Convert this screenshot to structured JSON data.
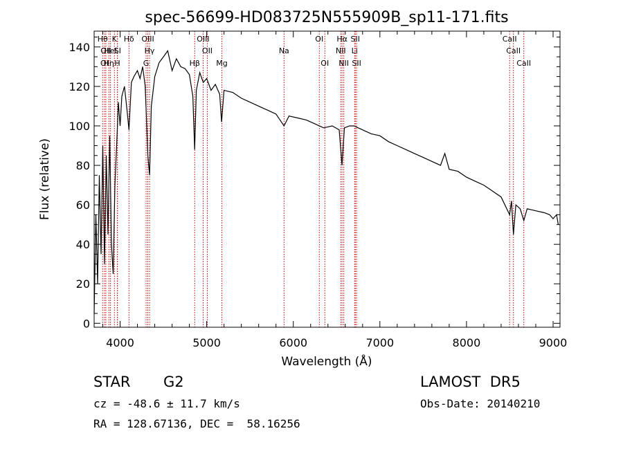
{
  "chart_data": {
    "type": "line",
    "title": "spec-56699-HD083725N555909B_sp11-171.fits",
    "xlabel": "Wavelength (Å)",
    "ylabel": "Flux (relative)",
    "xlim": [
      3700,
      9080
    ],
    "ylim": [
      -2,
      148
    ],
    "xticks": [
      4000,
      5000,
      6000,
      7000,
      8000,
      9000
    ],
    "yticks": [
      0,
      20,
      40,
      60,
      80,
      100,
      120,
      140
    ],
    "grid": false,
    "series": [
      {
        "color": "#000000",
        "points": [
          [
            3700,
            5
          ],
          [
            3720,
            55
          ],
          [
            3740,
            20
          ],
          [
            3760,
            75
          ],
          [
            3780,
            35
          ],
          [
            3800,
            90
          ],
          [
            3820,
            30
          ],
          [
            3840,
            85
          ],
          [
            3860,
            45
          ],
          [
            3880,
            95
          ],
          [
            3900,
            40
          ],
          [
            3920,
            25
          ],
          [
            3940,
            70
          ],
          [
            3960,
            90
          ],
          [
            3980,
            112
          ],
          [
            4000,
            100
          ],
          [
            4020,
            115
          ],
          [
            4050,
            120
          ],
          [
            4080,
            108
          ],
          [
            4102,
            98
          ],
          [
            4130,
            122
          ],
          [
            4160,
            125
          ],
          [
            4200,
            128
          ],
          [
            4230,
            124
          ],
          [
            4260,
            130
          ],
          [
            4290,
            120
          ],
          [
            4320,
            85
          ],
          [
            4340,
            75
          ],
          [
            4360,
            110
          ],
          [
            4400,
            125
          ],
          [
            4450,
            132
          ],
          [
            4500,
            135
          ],
          [
            4550,
            138
          ],
          [
            4600,
            128
          ],
          [
            4650,
            134
          ],
          [
            4700,
            130
          ],
          [
            4750,
            129
          ],
          [
            4800,
            126
          ],
          [
            4840,
            115
          ],
          [
            4861,
            88
          ],
          [
            4880,
            118
          ],
          [
            4920,
            127
          ],
          [
            4960,
            122
          ],
          [
            5000,
            124
          ],
          [
            5050,
            118
          ],
          [
            5100,
            121
          ],
          [
            5150,
            116
          ],
          [
            5172,
            102
          ],
          [
            5200,
            118
          ],
          [
            5300,
            117
          ],
          [
            5400,
            114
          ],
          [
            5500,
            112
          ],
          [
            5600,
            110
          ],
          [
            5700,
            108
          ],
          [
            5800,
            106
          ],
          [
            5893,
            100
          ],
          [
            5950,
            105
          ],
          [
            6050,
            104
          ],
          [
            6150,
            103
          ],
          [
            6250,
            101
          ],
          [
            6350,
            99
          ],
          [
            6450,
            100
          ],
          [
            6530,
            98
          ],
          [
            6563,
            80
          ],
          [
            6590,
            99
          ],
          [
            6650,
            100
          ],
          [
            6700,
            100
          ],
          [
            6800,
            98
          ],
          [
            6900,
            96
          ],
          [
            7000,
            95
          ],
          [
            7100,
            92
          ],
          [
            7200,
            90
          ],
          [
            7300,
            88
          ],
          [
            7400,
            86
          ],
          [
            7500,
            84
          ],
          [
            7600,
            82
          ],
          [
            7700,
            80
          ],
          [
            7750,
            86
          ],
          [
            7800,
            78
          ],
          [
            7900,
            77
          ],
          [
            8000,
            74
          ],
          [
            8100,
            72
          ],
          [
            8200,
            70
          ],
          [
            8300,
            67
          ],
          [
            8400,
            64
          ],
          [
            8498,
            55
          ],
          [
            8520,
            62
          ],
          [
            8542,
            45
          ],
          [
            8570,
            60
          ],
          [
            8620,
            58
          ],
          [
            8662,
            52
          ],
          [
            8700,
            58
          ],
          [
            8800,
            57
          ],
          [
            8900,
            56
          ],
          [
            8960,
            55
          ],
          [
            9000,
            53
          ],
          [
            9040,
            55
          ],
          [
            9060,
            50
          ]
        ]
      }
    ],
    "line_markers": [
      {
        "wave": 3798,
        "label": "Hθ",
        "row": 0
      },
      {
        "wave": 3835,
        "label": "OII",
        "row": 1
      },
      {
        "wave": 3820,
        "label": "OI",
        "row": 2
      },
      {
        "wave": 3889,
        "label": "HeI",
        "row": 1
      },
      {
        "wave": 3870,
        "label": "Hη",
        "row": 2
      },
      {
        "wave": 3934,
        "label": "K",
        "row": 0
      },
      {
        "wave": 3968,
        "label": "H",
        "row": 2
      },
      {
        "wave": 3970,
        "label": "SI",
        "row": 1
      },
      {
        "wave": 4102,
        "label": "Hδ",
        "row": 0
      },
      {
        "wave": 4320,
        "label": "OIII",
        "row": 0
      },
      {
        "wave": 4340,
        "label": "Hγ",
        "row": 1
      },
      {
        "wave": 4300,
        "label": "G",
        "row": 2
      },
      {
        "wave": 4861,
        "label": "Hβ",
        "row": 2
      },
      {
        "wave": 4959,
        "label": "OIII",
        "row": 0
      },
      {
        "wave": 5007,
        "label": "OII",
        "row": 1
      },
      {
        "wave": 5175,
        "label": "Mg",
        "row": 2
      },
      {
        "wave": 5893,
        "label": "Na",
        "row": 1
      },
      {
        "wave": 6300,
        "label": "OI",
        "row": 0
      },
      {
        "wave": 6364,
        "label": "OI",
        "row": 2
      },
      {
        "wave": 6563,
        "label": "Hα",
        "row": 0
      },
      {
        "wave": 6548,
        "label": "NII",
        "row": 1
      },
      {
        "wave": 6583,
        "label": "NII",
        "row": 2
      },
      {
        "wave": 6716,
        "label": "SII",
        "row": 0
      },
      {
        "wave": 6708,
        "label": "Li",
        "row": 1
      },
      {
        "wave": 6731,
        "label": "SII",
        "row": 2
      },
      {
        "wave": 8498,
        "label": "CaII",
        "row": 0
      },
      {
        "wave": 8542,
        "label": "CaII",
        "row": 1
      },
      {
        "wave": 8662,
        "label": "CaII",
        "row": 2
      }
    ]
  },
  "info": {
    "object_class": "STAR",
    "subclass": "G2",
    "survey": "LAMOST  DR5",
    "cz": "cz = -48.6 ± 11.7 km/s",
    "obs_date": "Obs-Date: 20140210",
    "radec": "RA = 128.67136, DEC =  58.16256"
  }
}
